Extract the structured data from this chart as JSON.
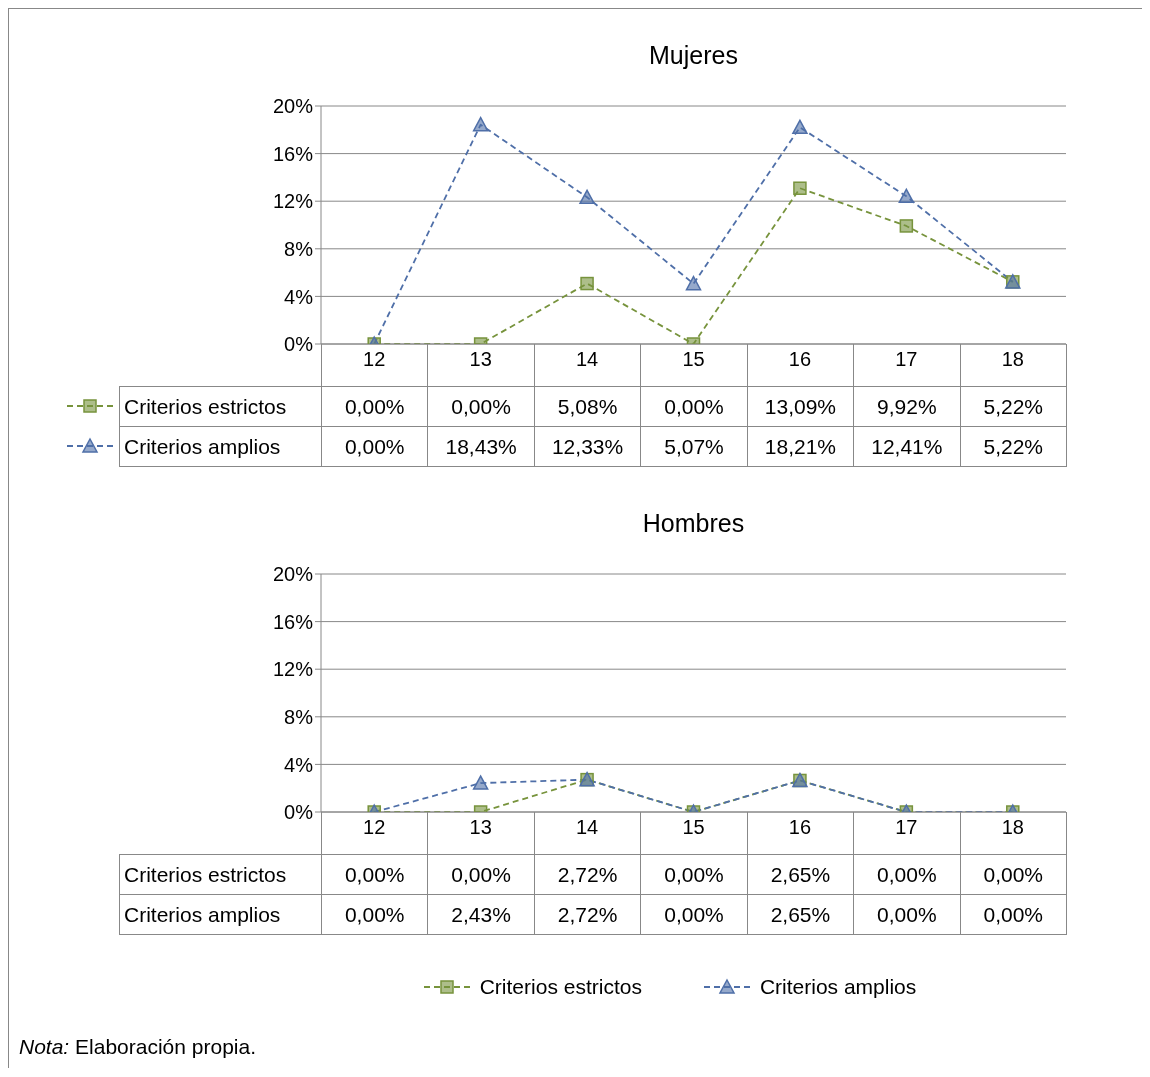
{
  "chart_data": [
    {
      "type": "line",
      "title": "Mujeres",
      "categories": [
        "12",
        "13",
        "14",
        "15",
        "16",
        "17",
        "18"
      ],
      "ylim": [
        0,
        20
      ],
      "yticks": [
        {
          "value": 0,
          "label": "0%"
        },
        {
          "value": 4,
          "label": "4%"
        },
        {
          "value": 8,
          "label": "8%"
        },
        {
          "value": 12,
          "label": "12%"
        },
        {
          "value": 16,
          "label": "16%"
        },
        {
          "value": 20,
          "label": "20%"
        }
      ],
      "grid": "y",
      "line_style": "dashed",
      "legend": "left",
      "series": [
        {
          "name": "Criterios estrictos",
          "color": "#77933c",
          "marker": "square",
          "values": [
            0,
            0,
            5.08,
            0,
            13.09,
            9.92,
            5.22
          ],
          "value_labels": [
            "0,00%",
            "0,00%",
            "5,08%",
            "0,00%",
            "13,09%",
            "9,92%",
            "5,22%"
          ]
        },
        {
          "name": "Criterios amplios",
          "color": "#4f6fa8",
          "marker": "triangle",
          "values": [
            0,
            18.43,
            12.33,
            5.07,
            18.21,
            12.41,
            5.22
          ],
          "value_labels": [
            "0,00%",
            "18,43%",
            "12,33%",
            "5,07%",
            "18,21%",
            "12,41%",
            "5,22%"
          ]
        }
      ]
    },
    {
      "type": "line",
      "title": "Hombres",
      "categories": [
        "12",
        "13",
        "14",
        "15",
        "16",
        "17",
        "18"
      ],
      "ylim": [
        0,
        20
      ],
      "yticks": [
        {
          "value": 0,
          "label": "0%"
        },
        {
          "value": 4,
          "label": "4%"
        },
        {
          "value": 8,
          "label": "8%"
        },
        {
          "value": 12,
          "label": "12%"
        },
        {
          "value": 16,
          "label": "16%"
        },
        {
          "value": 20,
          "label": "20%"
        }
      ],
      "grid": "y",
      "line_style": "dashed",
      "legend": "bottom",
      "annotations": [
        "Nota: Elaboración propia."
      ],
      "series": [
        {
          "name": "Criterios estrictos",
          "color": "#77933c",
          "marker": "square",
          "values": [
            0,
            0,
            2.72,
            0,
            2.65,
            0,
            0
          ],
          "value_labels": [
            "0,00%",
            "0,00%",
            "2,72%",
            "0,00%",
            "2,65%",
            "0,00%",
            "0,00%"
          ]
        },
        {
          "name": "Criterios amplios",
          "color": "#4f6fa8",
          "marker": "triangle",
          "values": [
            0,
            2.43,
            2.72,
            0,
            2.65,
            0,
            0
          ],
          "value_labels": [
            "0,00%",
            "2,43%",
            "2,72%",
            "0,00%",
            "2,65%",
            "0,00%",
            "0,00%"
          ]
        }
      ]
    }
  ]
}
